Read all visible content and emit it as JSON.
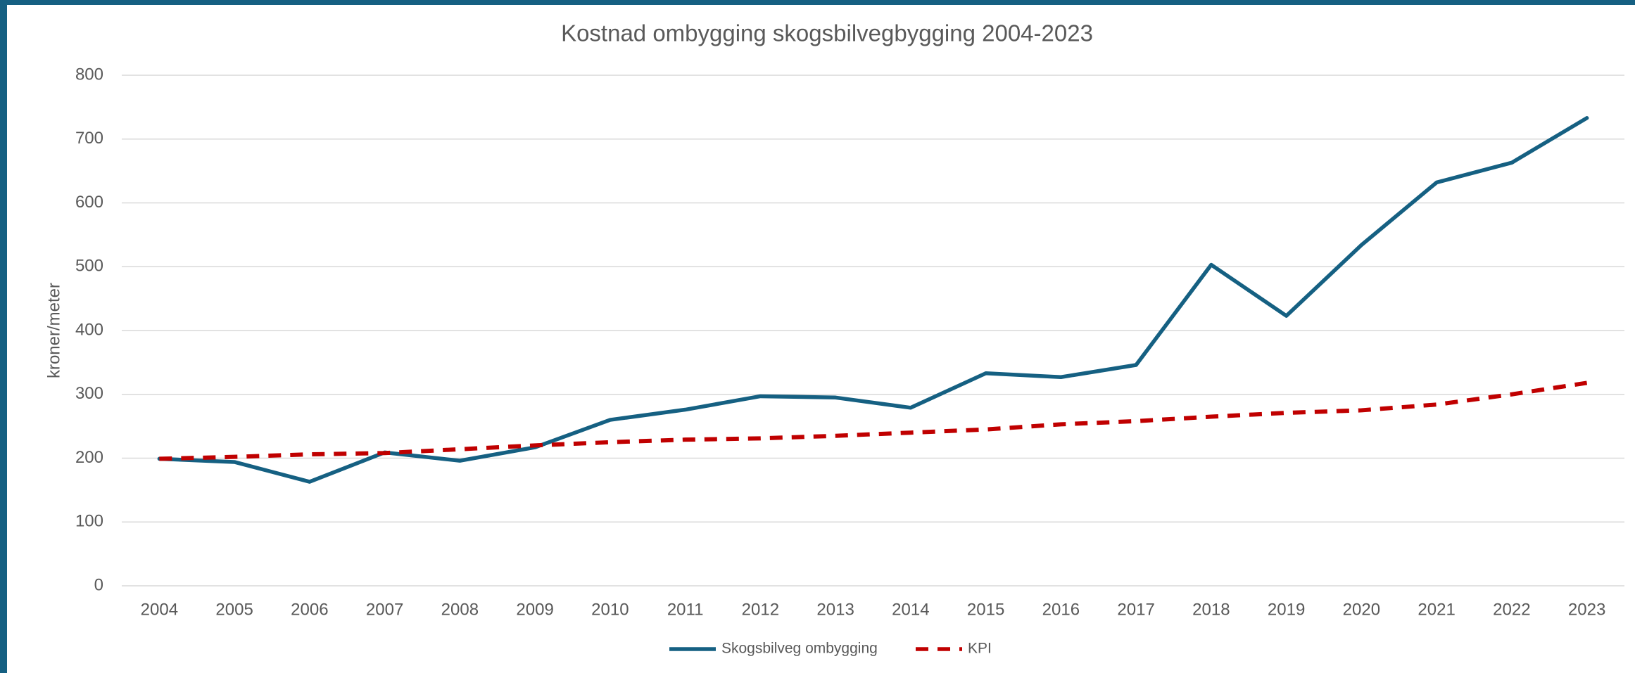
{
  "chart_data": {
    "type": "line",
    "title": "Kostnad ombygging skogsbilvegbygging 2004-2023",
    "y_label": "kroner/meter",
    "categories": [
      "2004",
      "2005",
      "2006",
      "2007",
      "2008",
      "2009",
      "2010",
      "2011",
      "2012",
      "2013",
      "2014",
      "2015",
      "2016",
      "2017",
      "2018",
      "2019",
      "2020",
      "2021",
      "2022",
      "2023"
    ],
    "series": [
      {
        "name": "Skogsbilveg ombygging",
        "color": "#156082",
        "dash": false,
        "values": [
          199,
          194,
          163,
          209,
          196,
          217,
          260,
          276,
          297,
          295,
          279,
          333,
          327,
          346,
          503,
          423,
          534,
          632,
          663,
          733
        ]
      },
      {
        "name": "KPI",
        "color": "#c00000",
        "dash": true,
        "values": [
          199,
          202,
          206,
          208,
          214,
          220,
          225,
          229,
          231,
          235,
          240,
          245,
          253,
          258,
          265,
          271,
          275,
          284,
          300,
          318
        ]
      }
    ],
    "ylim": [
      0,
      800
    ],
    "yticks": [
      0,
      100,
      200,
      300,
      400,
      500,
      600,
      700,
      800
    ],
    "grid": true,
    "legend": "bottom"
  }
}
